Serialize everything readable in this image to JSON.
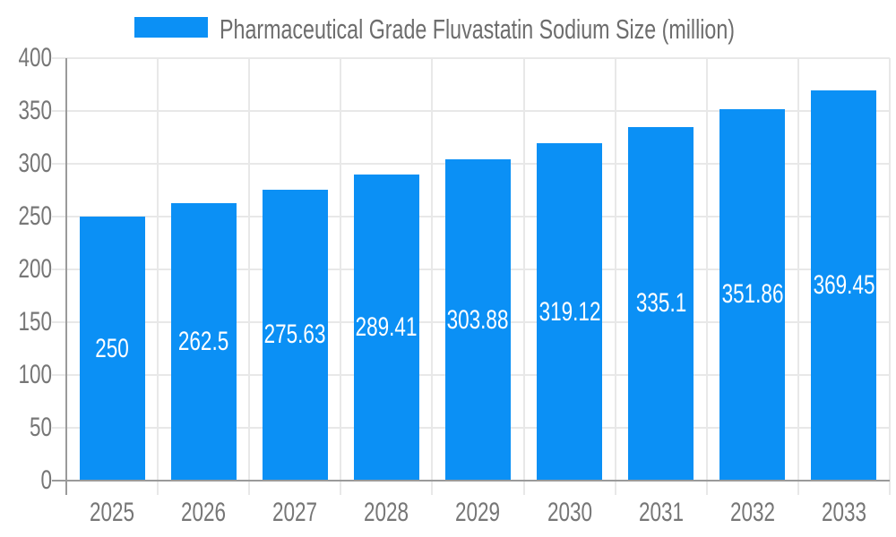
{
  "legend": {
    "label": "Pharmaceutical Grade Fluvastatin Sodium Size (million)"
  },
  "colors": {
    "bar": "#0b90f5",
    "grid": "#e8e8e8",
    "axis": "#9a9a9a",
    "axis_text": "#767676",
    "title_text": "#6d6d6d",
    "bar_label_text": "#ffffff",
    "background": "#ffffff"
  },
  "chart_data": {
    "type": "bar",
    "title": "Pharmaceutical Grade Fluvastatin Sodium Size (million)",
    "categories": [
      "2025",
      "2026",
      "2027",
      "2028",
      "2029",
      "2030",
      "2031",
      "2032",
      "2033"
    ],
    "values": [
      250,
      262.5,
      275.63,
      289.41,
      303.88,
      319.12,
      335.1,
      351.86,
      369.45
    ],
    "bar_labels": [
      "250",
      "262.5",
      "275.63",
      "289.41",
      "303.88",
      "319.12",
      "335.1",
      "351.86",
      "369.45"
    ],
    "xlabel": "",
    "ylabel": "",
    "ylim": [
      0,
      400
    ],
    "yticks": [
      0,
      50,
      100,
      150,
      200,
      250,
      300,
      350,
      400
    ],
    "grid": true,
    "legend_position": "top",
    "bar_label_position": "inside-center"
  }
}
